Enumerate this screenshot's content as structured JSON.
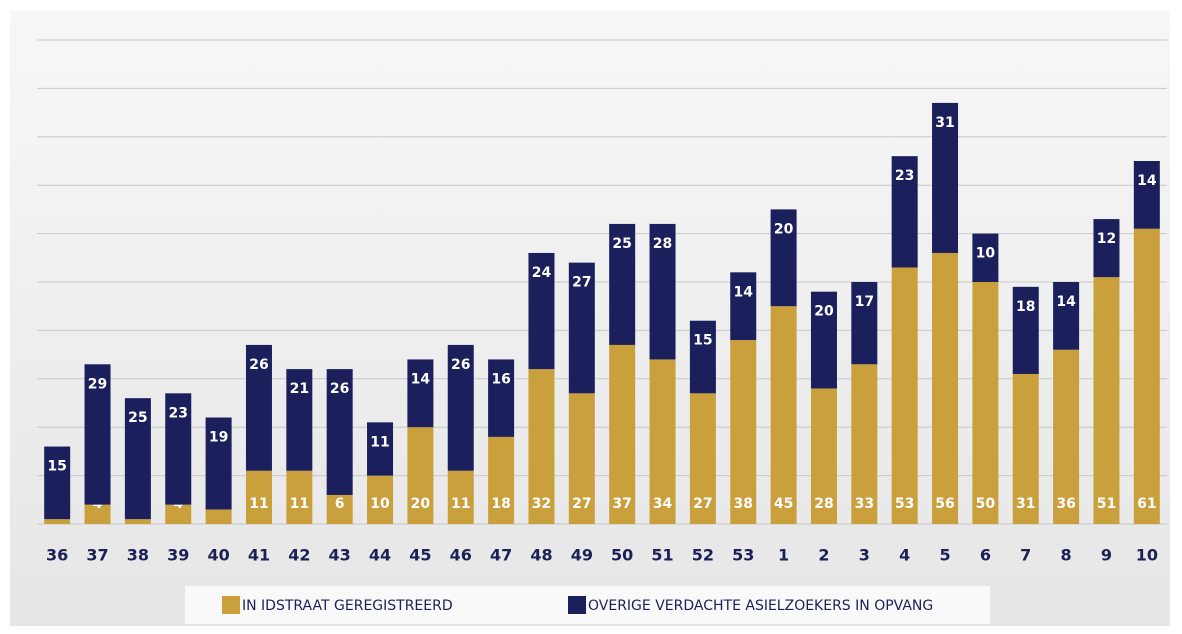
{
  "chart_data": {
    "type": "stacked-bar",
    "categories": [
      "36",
      "37",
      "38",
      "39",
      "40",
      "41",
      "42",
      "43",
      "44",
      "45",
      "46",
      "47",
      "48",
      "49",
      "50",
      "51",
      "52",
      "53",
      "1",
      "2",
      "3",
      "4",
      "5",
      "6",
      "7",
      "8",
      "9",
      "10"
    ],
    "series": [
      {
        "name": "IN IDSTRAAT GEREGISTREERD",
        "color": "#c9a03c",
        "values": [
          1,
          4,
          1,
          4,
          3,
          11,
          11,
          6,
          10,
          20,
          11,
          18,
          32,
          27,
          37,
          34,
          27,
          38,
          45,
          28,
          33,
          53,
          56,
          50,
          31,
          36,
          51,
          61
        ]
      },
      {
        "name": "OVERIGE VERDACHTE ASIELZOEKERS IN OPVANG",
        "color": "#1b1f5c",
        "values": [
          15,
          29,
          25,
          23,
          19,
          26,
          21,
          26,
          11,
          14,
          26,
          16,
          24,
          27,
          25,
          28,
          15,
          14,
          20,
          20,
          17,
          23,
          31,
          10,
          18,
          14,
          12,
          14
        ]
      }
    ],
    "ylim": [
      0,
      100
    ],
    "yticks": [
      0,
      10,
      20,
      30,
      40,
      50,
      60,
      70,
      80,
      90,
      100
    ],
    "grid": true
  }
}
